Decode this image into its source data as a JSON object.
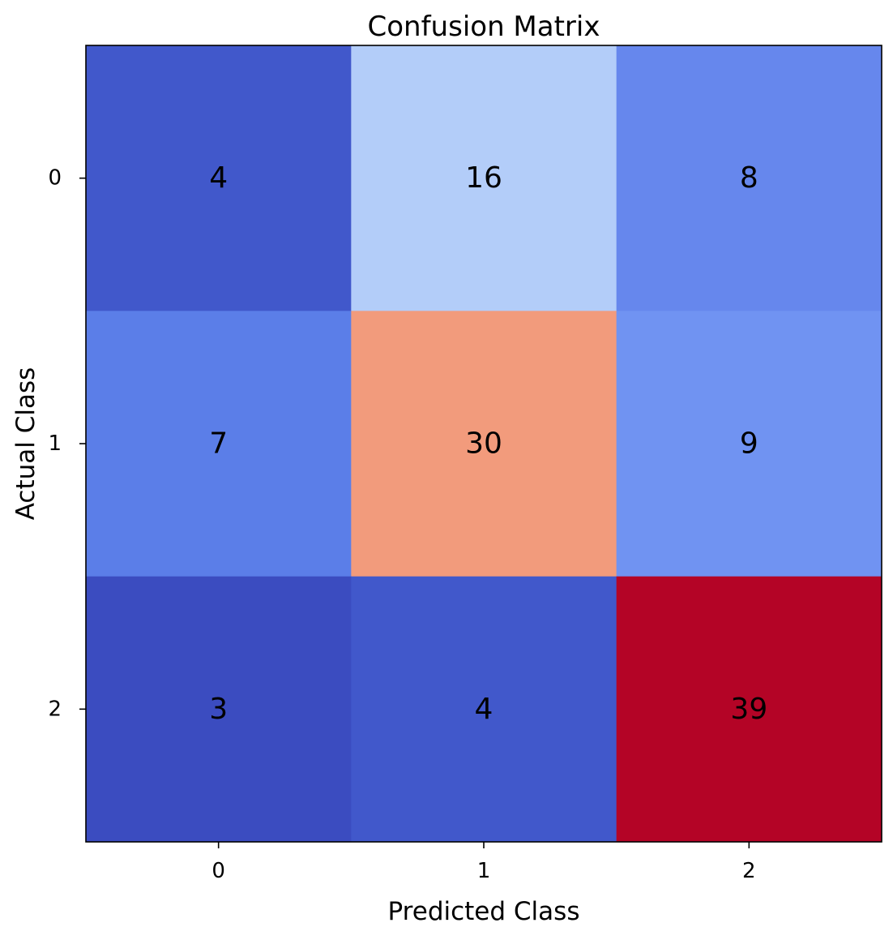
{
  "chart_data": {
    "type": "heatmap",
    "title": "Confusion Matrix",
    "xlabel": "Predicted Class",
    "ylabel": "Actual Class",
    "x_categories": [
      "0",
      "1",
      "2"
    ],
    "y_categories": [
      "0",
      "1",
      "2"
    ],
    "values": [
      [
        4,
        16,
        8
      ],
      [
        7,
        30,
        9
      ],
      [
        3,
        4,
        39
      ]
    ],
    "colormap": "coolwarm",
    "value_range": [
      3,
      39
    ],
    "grid": false,
    "colorbar": false
  },
  "colors": {
    "cells": [
      [
        "#4158cb",
        "#b3cdf9",
        "#6687ed"
      ],
      [
        "#5b7ee8",
        "#f29b7c",
        "#7093f2"
      ],
      [
        "#3b4cc0",
        "#4158cb",
        "#b40426"
      ]
    ],
    "text": "#000000",
    "frame": "#000000"
  }
}
